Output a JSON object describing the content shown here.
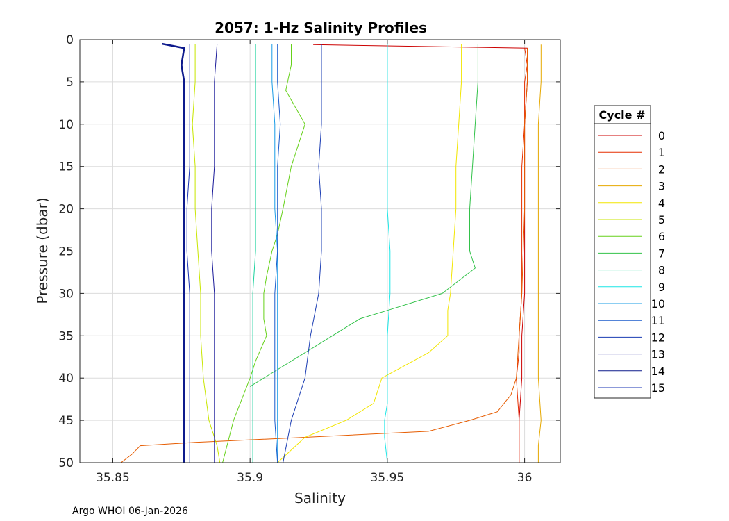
{
  "chart_data": {
    "type": "line",
    "title": "2057: 1-Hz Salinity Profiles",
    "xlabel": "Salinity",
    "ylabel": "Pressure (dbar)",
    "xlim": [
      35.838,
      36.013
    ],
    "ylim": [
      0,
      50
    ],
    "y_reversed": true,
    "grid": true,
    "xticks": [
      35.85,
      35.9,
      35.95,
      36
    ],
    "xtick_labels": [
      "35.85",
      "35.9",
      "35.95",
      "36"
    ],
    "yticks": [
      0,
      5,
      10,
      15,
      20,
      25,
      30,
      35,
      40,
      45,
      50
    ],
    "ytick_labels": [
      "0",
      "5",
      "10",
      "15",
      "20",
      "25",
      "30",
      "35",
      "40",
      "45",
      "50"
    ],
    "legend_title": "Cycle #",
    "legend_position": "outside-right",
    "footer": "Argo WHOI 06-Jan-2026",
    "series": [
      {
        "name": "0",
        "color": "#cc0000",
        "pressure": [
          0.6,
          1,
          5,
          10,
          15,
          20,
          25,
          30,
          35,
          40,
          45,
          48,
          50
        ],
        "salinity": [
          35.923,
          36.001,
          36.001,
          36.0,
          36.0,
          36.0,
          36.0,
          36.0,
          35.999,
          35.999,
          35.998,
          35.998,
          35.998
        ]
      },
      {
        "name": "1",
        "color": "#e62e00",
        "pressure": [
          1,
          3,
          5,
          10,
          15,
          20,
          25,
          30,
          35,
          37,
          40,
          45,
          50
        ],
        "salinity": [
          36.0,
          36.001,
          36.0,
          36.0,
          35.999,
          35.999,
          35.999,
          35.999,
          35.998,
          35.998,
          35.997,
          35.998,
          35.998
        ]
      },
      {
        "name": "2",
        "color": "#e65c00",
        "pressure": [
          1,
          5,
          10,
          20,
          30,
          40,
          42,
          44,
          45,
          46.3,
          47,
          47.6,
          48,
          49,
          50
        ],
        "salinity": [
          36.001,
          36.001,
          36.0,
          36.0,
          35.999,
          35.997,
          35.995,
          35.99,
          35.98,
          35.965,
          35.92,
          35.88,
          35.86,
          35.857,
          35.853
        ]
      },
      {
        "name": "3",
        "color": "#e6a800",
        "pressure": [
          0.6,
          5,
          10,
          20,
          30,
          40,
          45,
          48,
          50
        ],
        "salinity": [
          36.006,
          36.006,
          36.005,
          36.005,
          36.005,
          36.005,
          36.006,
          36.005,
          36.005
        ]
      },
      {
        "name": "4",
        "color": "#f2e600",
        "pressure": [
          0.5,
          5,
          10,
          15,
          20,
          25,
          30,
          32,
          35,
          37,
          40,
          43,
          45,
          47,
          50
        ],
        "salinity": [
          35.977,
          35.977,
          35.976,
          35.975,
          35.975,
          35.974,
          35.973,
          35.972,
          35.972,
          35.965,
          35.948,
          35.945,
          35.935,
          35.92,
          35.91
        ]
      },
      {
        "name": "5",
        "color": "#c8e600",
        "pressure": [
          0.5,
          5,
          10,
          15,
          20,
          25,
          30,
          35,
          40,
          45,
          48,
          50
        ],
        "salinity": [
          35.88,
          35.88,
          35.879,
          35.88,
          35.88,
          35.881,
          35.882,
          35.882,
          35.883,
          35.885,
          35.888,
          35.889
        ]
      },
      {
        "name": "6",
        "color": "#66d11a",
        "pressure": [
          0.5,
          3,
          6,
          10,
          15,
          20,
          23,
          25,
          28,
          30,
          33,
          35,
          38,
          40,
          45,
          50
        ],
        "salinity": [
          35.915,
          35.915,
          35.913,
          35.92,
          35.915,
          35.912,
          35.91,
          35.908,
          35.906,
          35.905,
          35.905,
          35.906,
          35.902,
          35.9,
          35.894,
          35.89
        ]
      },
      {
        "name": "7",
        "color": "#33c24a",
        "pressure": [
          0.5,
          5,
          10,
          15,
          20,
          25,
          27,
          30,
          32,
          33,
          35,
          37,
          39,
          41
        ],
        "salinity": [
          35.983,
          35.983,
          35.982,
          35.981,
          35.98,
          35.98,
          35.982,
          35.97,
          35.95,
          35.94,
          35.93,
          35.92,
          35.91,
          35.9
        ]
      },
      {
        "name": "8",
        "color": "#1ad19c",
        "pressure": [
          0.5,
          5,
          10,
          15,
          20,
          25,
          30,
          35,
          40,
          45,
          50
        ],
        "salinity": [
          35.902,
          35.902,
          35.902,
          35.902,
          35.902,
          35.902,
          35.901,
          35.901,
          35.901,
          35.901,
          35.901
        ]
      },
      {
        "name": "9",
        "color": "#1ae6e6",
        "pressure": [
          0.5,
          3,
          8,
          10,
          15,
          20,
          25,
          30,
          35,
          40,
          43,
          45,
          47,
          50
        ],
        "salinity": [
          35.95,
          35.95,
          35.95,
          35.95,
          35.95,
          35.95,
          35.951,
          35.951,
          35.95,
          35.95,
          35.95,
          35.949,
          35.949,
          35.95
        ]
      },
      {
        "name": "10",
        "color": "#1a9ce6",
        "pressure": [
          0.5,
          5,
          10,
          15,
          20,
          25,
          30,
          35,
          40,
          45,
          50
        ],
        "salinity": [
          35.908,
          35.908,
          35.909,
          35.909,
          35.909,
          35.91,
          35.91,
          35.91,
          35.91,
          35.91,
          35.91
        ]
      },
      {
        "name": "11",
        "color": "#1a5ccc",
        "pressure": [
          0.5,
          5,
          10,
          15,
          20,
          25,
          30,
          35,
          40,
          45,
          50
        ],
        "salinity": [
          35.91,
          35.91,
          35.911,
          35.91,
          35.91,
          35.91,
          35.909,
          35.909,
          35.909,
          35.909,
          35.91
        ]
      },
      {
        "name": "12",
        "color": "#1a3cb3",
        "pressure": [
          0.5,
          5,
          10,
          15,
          20,
          25,
          30,
          35,
          40,
          45,
          50
        ],
        "salinity": [
          35.926,
          35.926,
          35.926,
          35.925,
          35.926,
          35.926,
          35.925,
          35.922,
          35.92,
          35.915,
          35.912
        ]
      },
      {
        "name": "13",
        "color": "#1a1a99",
        "pressure": [
          0.5,
          5,
          10,
          15,
          20,
          25,
          30,
          35,
          40,
          45,
          50
        ],
        "salinity": [
          35.888,
          35.887,
          35.887,
          35.887,
          35.886,
          35.886,
          35.887,
          35.887,
          35.887,
          35.887,
          35.887
        ]
      },
      {
        "name": "14",
        "color": "#0d1a8c",
        "pressure": [
          0.5,
          1,
          3,
          5,
          10,
          15,
          20,
          25,
          30,
          35,
          40,
          45,
          50
        ],
        "salinity": [
          35.868,
          35.876,
          35.875,
          35.876,
          35.876,
          35.876,
          35.876,
          35.876,
          35.876,
          35.876,
          35.876,
          35.876,
          35.876
        ]
      },
      {
        "name": "15",
        "color": "#1a33b3",
        "pressure": [
          0.5,
          5,
          10,
          15,
          20,
          25,
          30,
          35,
          40,
          45,
          50
        ],
        "salinity": [
          35.878,
          35.878,
          35.878,
          35.878,
          35.877,
          35.877,
          35.878,
          35.878,
          35.878,
          35.878,
          35.878
        ]
      }
    ]
  }
}
